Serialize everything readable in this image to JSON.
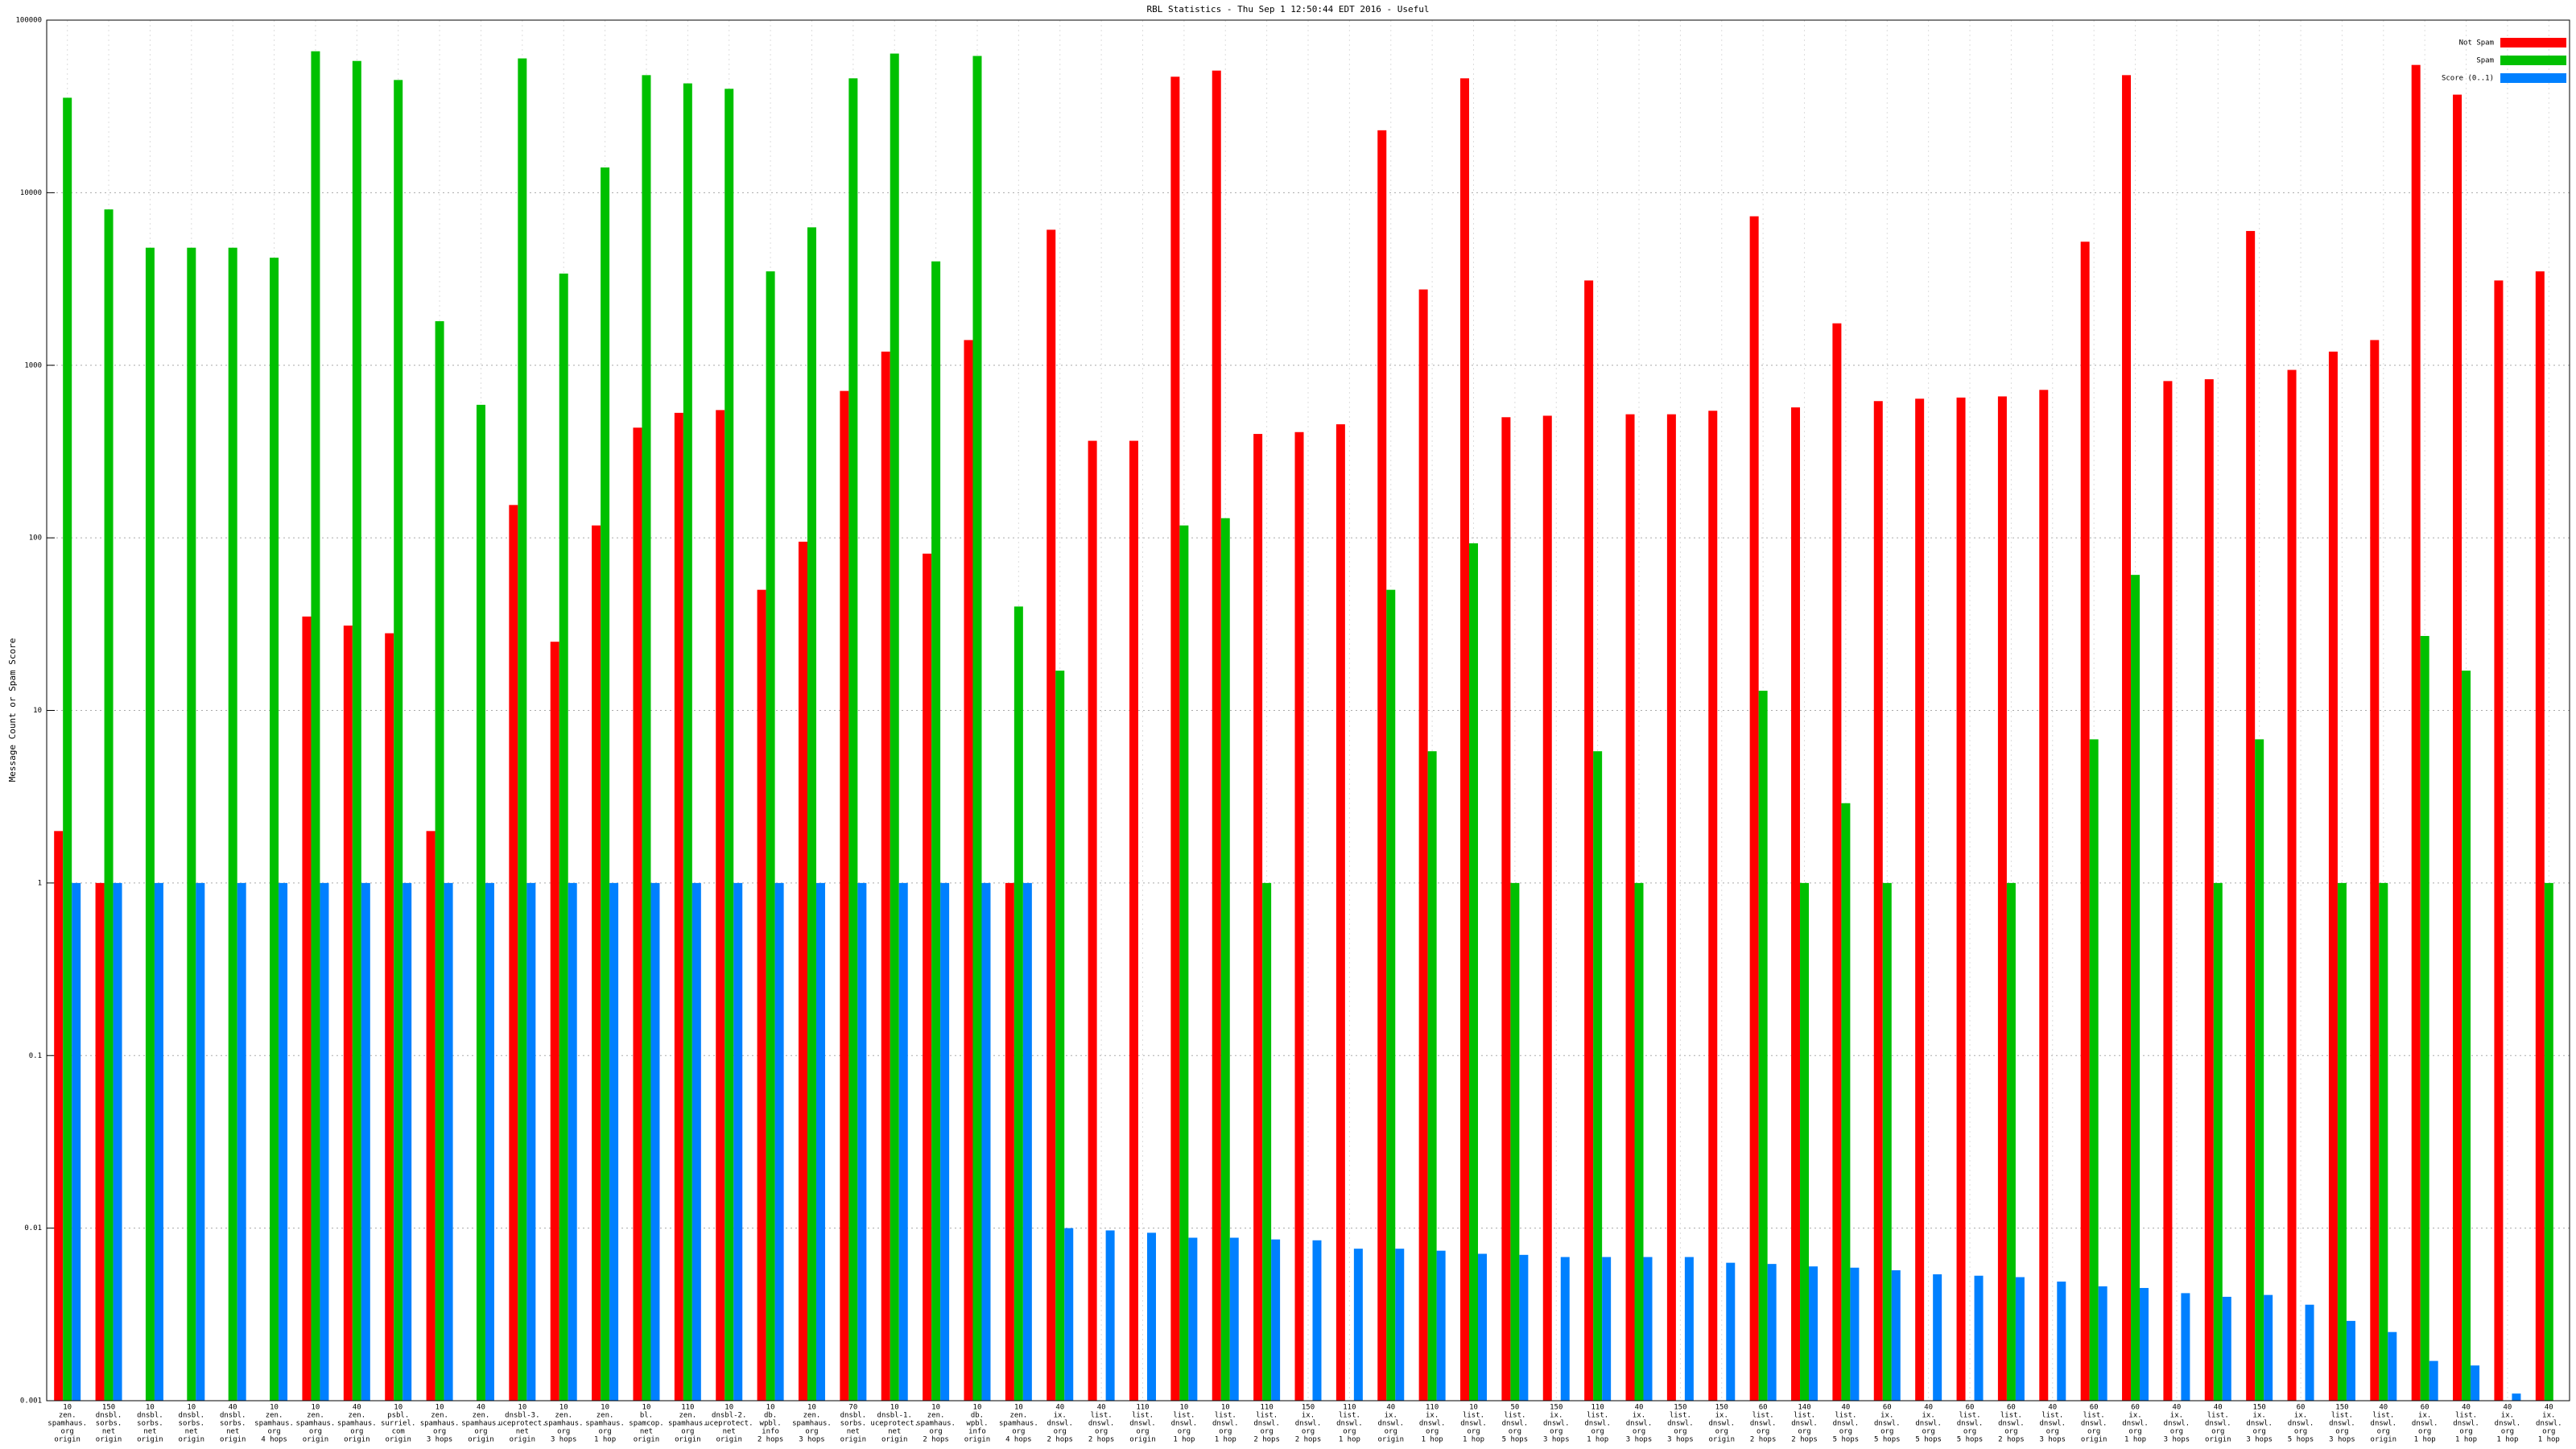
{
  "chart_data": {
    "type": "bar",
    "title": "RBL Statistics - Thu Sep  1 12:50:44 EDT 2016 - Useful",
    "y_label": "Message Count or Spam Score",
    "log_scale": true,
    "grid": true,
    "legend": "top-right",
    "ylim": [
      0.001,
      100000
    ],
    "yticks": [
      0.001,
      0.01,
      0.1,
      1,
      10,
      100,
      1000,
      10000,
      100000
    ],
    "categories": [
      [
        "10",
        "zen.",
        "spamhaus.",
        "org",
        "origin"
      ],
      [
        "150",
        "dnsbl.",
        "sorbs.",
        "net",
        "origin"
      ],
      [
        "10",
        "dnsbl.",
        "sorbs.",
        "net",
        "origin"
      ],
      [
        "10",
        "dnsbl.",
        "sorbs.",
        "net",
        "origin"
      ],
      [
        "40",
        "dnsbl.",
        "sorbs.",
        "net",
        "origin"
      ],
      [
        "10",
        "zen.",
        "spamhaus.",
        "org",
        "4 hops"
      ],
      [
        "10",
        "zen.",
        "spamhaus.",
        "org",
        "origin"
      ],
      [
        "40",
        "zen.",
        "spamhaus.",
        "org",
        "origin"
      ],
      [
        "10",
        "psbl.",
        "surriel.",
        "com",
        "origin"
      ],
      [
        "10",
        "zen.",
        "spamhaus.",
        "org",
        "3 hops"
      ],
      [
        "40",
        "zen.",
        "spamhaus.",
        "org",
        "origin"
      ],
      [
        "10",
        "dnsbl-3.",
        "uceprotect.",
        "net",
        "origin"
      ],
      [
        "10",
        "zen.",
        "spamhaus.",
        "org",
        "3 hops"
      ],
      [
        "10",
        "zen.",
        "spamhaus.",
        "org",
        "1 hop"
      ],
      [
        "10",
        "bl.",
        "spamcop.",
        "net",
        "origin"
      ],
      [
        "110",
        "zen.",
        "spamhaus.",
        "org",
        "origin"
      ],
      [
        "10",
        "dnsbl-2.",
        "uceprotect.",
        "net",
        "origin"
      ],
      [
        "10",
        "db.",
        "wpbl.",
        "info",
        "2 hops"
      ],
      [
        "10",
        "zen.",
        "spamhaus.",
        "org",
        "3 hops"
      ],
      [
        "70",
        "dnsbl.",
        "sorbs.",
        "net",
        "origin"
      ],
      [
        "10",
        "dnsbl-1.",
        "uceprotect.",
        "net",
        "origin"
      ],
      [
        "10",
        "zen.",
        "spamhaus.",
        "org",
        "2 hops"
      ],
      [
        "10",
        "db.",
        "wpbl.",
        "info",
        "origin"
      ],
      [
        "10",
        "zen.",
        "spamhaus.",
        "org",
        "4 hops"
      ],
      [
        "40",
        "ix.",
        "dnswl.",
        "org",
        "2 hops"
      ],
      [
        "40",
        "list.",
        "dnswl.",
        "org",
        "2 hops"
      ],
      [
        "110",
        "list.",
        "dnswl.",
        "org",
        "origin"
      ],
      [
        "10",
        "list.",
        "dnswl.",
        "org",
        "1 hop"
      ],
      [
        "10",
        "list.",
        "dnswl.",
        "org",
        "1 hop"
      ],
      [
        "110",
        "list.",
        "dnswl.",
        "org",
        "2 hops"
      ],
      [
        "150",
        "ix.",
        "dnswl.",
        "org",
        "2 hops"
      ],
      [
        "110",
        "list.",
        "dnswl.",
        "org",
        "1 hop"
      ],
      [
        "40",
        "ix.",
        "dnswl.",
        "org",
        "origin"
      ],
      [
        "110",
        "ix.",
        "dnswl.",
        "org",
        "1 hop"
      ],
      [
        "10",
        "list.",
        "dnswl.",
        "org",
        "1 hop"
      ],
      [
        "50",
        "list.",
        "dnswl.",
        "org",
        "5 hops"
      ],
      [
        "150",
        "ix.",
        "dnswl.",
        "org",
        "3 hops"
      ],
      [
        "110",
        "list.",
        "dnswl.",
        "org",
        "1 hop"
      ],
      [
        "40",
        "ix.",
        "dnswl.",
        "org",
        "3 hops"
      ],
      [
        "150",
        "list.",
        "dnswl.",
        "org",
        "3 hops"
      ],
      [
        "150",
        "ix.",
        "dnswl.",
        "org",
        "origin"
      ],
      [
        "60",
        "list.",
        "dnswl.",
        "org",
        "2 hops"
      ],
      [
        "140",
        "list.",
        "dnswl.",
        "org",
        "2 hops"
      ],
      [
        "40",
        "list.",
        "dnswl.",
        "org",
        "5 hops"
      ],
      [
        "60",
        "ix.",
        "dnswl.",
        "org",
        "5 hops"
      ],
      [
        "40",
        "ix.",
        "dnswl.",
        "org",
        "5 hops"
      ],
      [
        "60",
        "list.",
        "dnswl.",
        "org",
        "5 hops"
      ],
      [
        "60",
        "list.",
        "dnswl.",
        "org",
        "2 hops"
      ],
      [
        "40",
        "list.",
        "dnswl.",
        "org",
        "3 hops"
      ],
      [
        "60",
        "list.",
        "dnswl.",
        "org",
        "origin"
      ],
      [
        "60",
        "ix.",
        "dnswl.",
        "org",
        "1 hop"
      ],
      [
        "40",
        "ix.",
        "dnswl.",
        "org",
        "3 hops"
      ],
      [
        "40",
        "list.",
        "dnswl.",
        "org",
        "origin"
      ],
      [
        "150",
        "ix.",
        "dnswl.",
        "org",
        "3 hops"
      ],
      [
        "60",
        "ix.",
        "dnswl.",
        "org",
        "5 hops"
      ],
      [
        "150",
        "list.",
        "dnswl.",
        "org",
        "3 hops"
      ],
      [
        "40",
        "list.",
        "dnswl.",
        "org",
        "origin"
      ],
      [
        "60",
        "ix.",
        "dnswl.",
        "org",
        "1 hop"
      ],
      [
        "40",
        "list.",
        "dnswl.",
        "org",
        "1 hop"
      ],
      [
        "40",
        "ix.",
        "dnswl.",
        "org",
        "1 hop"
      ],
      [
        "40",
        "ix.",
        "dnswl.",
        "org",
        "1 hop"
      ]
    ],
    "series": [
      {
        "name": "Not Spam",
        "color": "#ff0000",
        "values": [
          2,
          1,
          null,
          null,
          null,
          null,
          35,
          31,
          28,
          2,
          null,
          155,
          25,
          118,
          435,
          530,
          550,
          50,
          95,
          710,
          1200,
          81,
          1400,
          1,
          6100,
          365,
          365,
          47000,
          51000,
          400,
          410,
          455,
          23000,
          2750,
          46000,
          500,
          510,
          3100,
          520,
          520,
          545,
          7300,
          570,
          1750,
          620,
          640,
          650,
          660,
          720,
          5200,
          48000,
          810,
          830,
          6000,
          940,
          1200,
          1400,
          55000,
          37000,
          3100,
          3500
        ]
      },
      {
        "name": "Spam",
        "color": "#00c000",
        "values": [
          35500,
          8000,
          4800,
          4800,
          4800,
          4200,
          66000,
          58000,
          45000,
          1800,
          590,
          60000,
          3400,
          14000,
          48000,
          43000,
          40000,
          3500,
          6300,
          46000,
          64000,
          4000,
          62000,
          40,
          17,
          null,
          null,
          118,
          130,
          1,
          null,
          null,
          50,
          5.8,
          93,
          1,
          null,
          5.8,
          1,
          null,
          null,
          13,
          1,
          2.9,
          1,
          null,
          null,
          1,
          null,
          6.8,
          61,
          null,
          1,
          6.8,
          null,
          1,
          1,
          27,
          17,
          null,
          1
        ]
      },
      {
        "name": "Score (0..1)",
        "color": "#0080ff",
        "values": [
          1,
          1,
          1,
          1,
          1,
          1,
          1,
          1,
          1,
          1,
          1,
          1,
          1,
          1,
          1,
          1,
          1,
          1,
          1,
          1,
          1,
          1,
          1,
          1,
          0.01,
          0.0097,
          0.0094,
          0.0088,
          0.0088,
          0.0086,
          0.0085,
          0.0076,
          0.0076,
          0.0074,
          0.0071,
          0.007,
          0.0068,
          0.0068,
          0.0068,
          0.0068,
          0.0063,
          0.0062,
          0.006,
          0.0059,
          0.0057,
          0.0054,
          0.0053,
          0.0052,
          0.0049,
          0.0046,
          0.0045,
          0.0042,
          0.004,
          0.0041,
          0.0036,
          0.0029,
          0.0025,
          0.0017,
          0.0016,
          0.0011,
          null
        ]
      }
    ]
  }
}
